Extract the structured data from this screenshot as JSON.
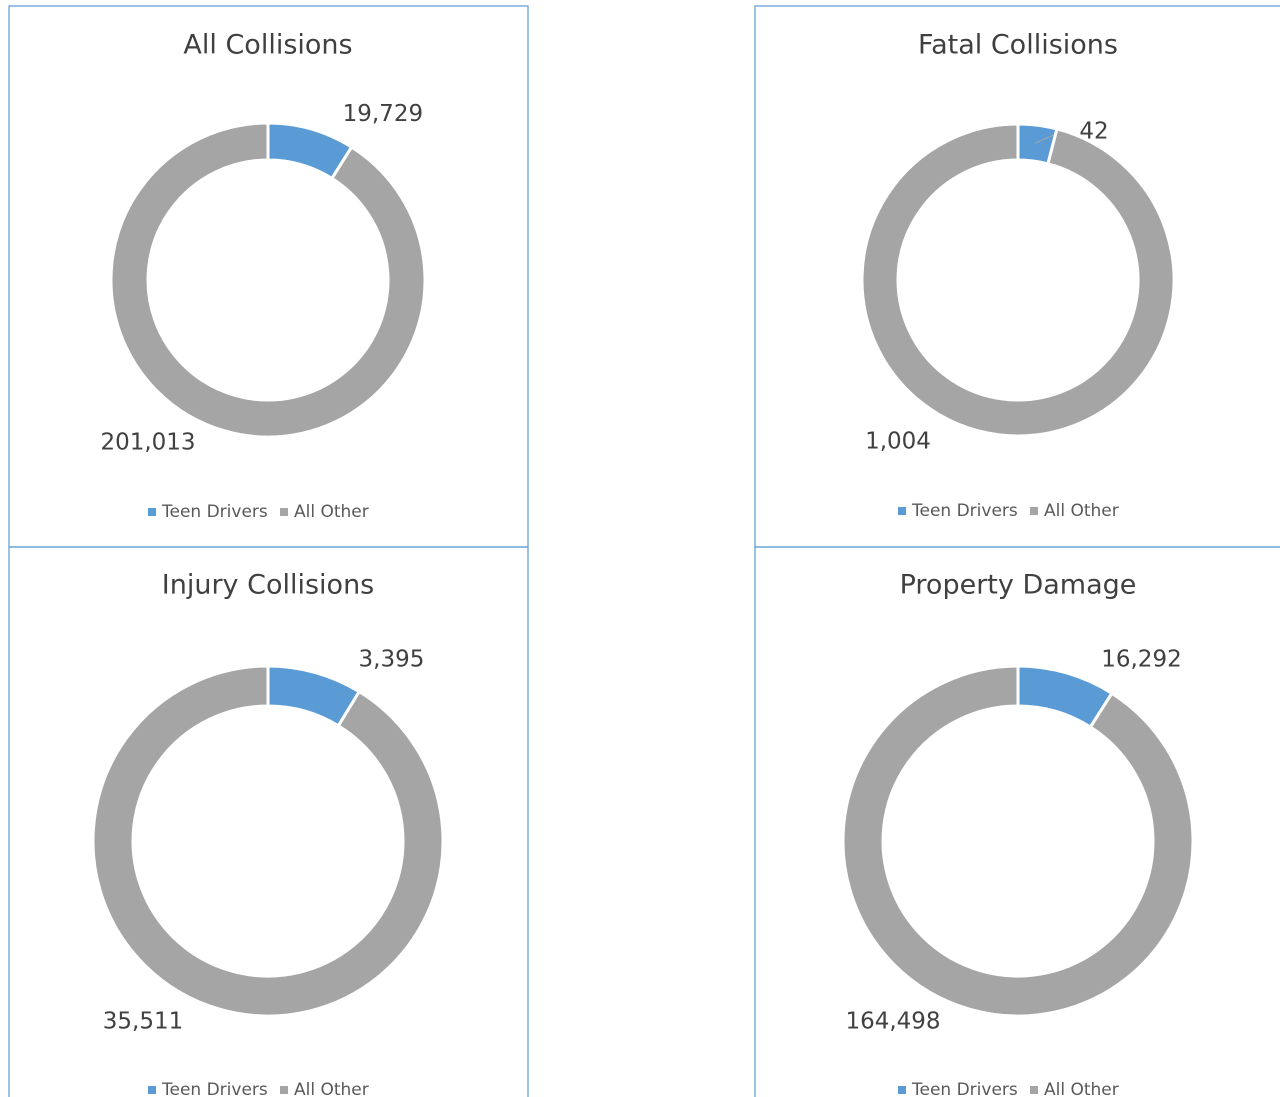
{
  "chart_data": [
    {
      "type": "donut",
      "title": "All Collisions",
      "categories": [
        "Teen Drivers",
        "All Other"
      ],
      "values": [
        19729,
        201013
      ],
      "value_labels": [
        "19,729",
        "201,013"
      ],
      "colors": [
        "#5b9bd5",
        "#a5a5a5"
      ]
    },
    {
      "type": "donut",
      "title": "Fatal Collisions",
      "categories": [
        "Teen Drivers",
        "All Other"
      ],
      "values": [
        42,
        1004
      ],
      "value_labels": [
        "42",
        "1,004"
      ],
      "colors": [
        "#5b9bd5",
        "#a5a5a5"
      ]
    },
    {
      "type": "donut",
      "title": "Injury Collisions",
      "categories": [
        "Teen Drivers",
        "All Other"
      ],
      "values": [
        3395,
        35511
      ],
      "value_labels": [
        "3,395",
        "35,511"
      ],
      "colors": [
        "#5b9bd5",
        "#a5a5a5"
      ]
    },
    {
      "type": "donut",
      "title": "Property Damage",
      "categories": [
        "Teen Drivers",
        "All Other"
      ],
      "values": [
        16292,
        164498
      ],
      "value_labels": [
        "16,292",
        "164,498"
      ],
      "colors": [
        "#5b9bd5",
        "#a5a5a5"
      ]
    }
  ]
}
